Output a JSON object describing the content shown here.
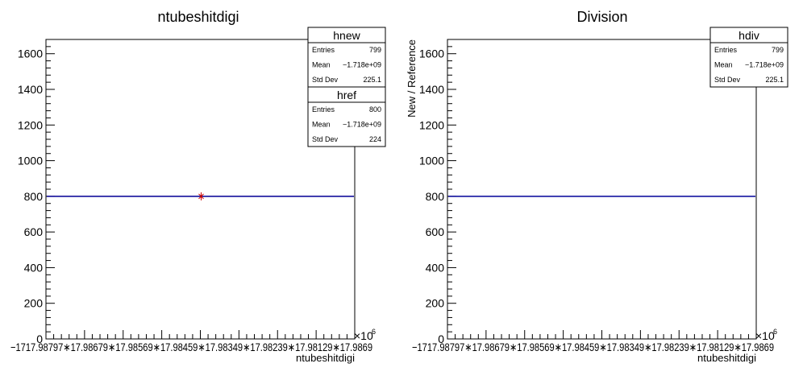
{
  "chart_data": [
    {
      "type": "line",
      "title": "ntubeshitdigi",
      "xlabel": "ntubeshitdigi",
      "ylabel": "",
      "ylim": [
        0,
        1680
      ],
      "yticks": [
        "0",
        "200",
        "400",
        "600",
        "800",
        "1000",
        "1200",
        "1400",
        "1600"
      ],
      "yticks_values": [
        0,
        200,
        400,
        600,
        800,
        1000,
        1200,
        1400,
        1600
      ],
      "x_tick_labels_text": "−1717.98797∗17.98679∗17.98569∗17.98459∗17.98349∗17.98239∗17.98129∗17.9869",
      "x_exponent": "×10",
      "x_exponent_power": "6",
      "series": [
        {
          "name": "hnew",
          "color": "#000099",
          "values": [
            800
          ]
        },
        {
          "name": "href",
          "color": "#cc0000",
          "values": [
            800
          ]
        }
      ],
      "stats": [
        {
          "name": "hnew",
          "rows": [
            [
              "Entries",
              "799"
            ],
            [
              "Mean",
              "−1.718e+09"
            ],
            [
              "Std Dev",
              "225.1"
            ]
          ]
        },
        {
          "name": "href",
          "rows": [
            [
              "Entries",
              "800"
            ],
            [
              "Mean",
              "−1.718e+09"
            ],
            [
              "Std Dev",
              "224"
            ]
          ]
        }
      ]
    },
    {
      "type": "line",
      "title": "Division",
      "xlabel": "ntubeshitdigi",
      "ylabel": "New / Reference",
      "ylim": [
        0,
        1680
      ],
      "yticks": [
        "0",
        "200",
        "400",
        "600",
        "800",
        "1000",
        "1200",
        "1400",
        "1600"
      ],
      "yticks_values": [
        0,
        200,
        400,
        600,
        800,
        1000,
        1200,
        1400,
        1600
      ],
      "x_tick_labels_text": "−1717.98797∗17.98679∗17.98569∗17.98459∗17.98349∗17.98239∗17.98129∗17.9869",
      "x_exponent": "×10",
      "x_exponent_power": "6",
      "series": [
        {
          "name": "hdiv",
          "color": "#000099",
          "values": [
            800
          ]
        }
      ],
      "stats": [
        {
          "name": "hdiv",
          "rows": [
            [
              "Entries",
              "799"
            ],
            [
              "Mean",
              "−1.718e+09"
            ],
            [
              "Std Dev",
              "225.1"
            ]
          ]
        }
      ]
    }
  ]
}
